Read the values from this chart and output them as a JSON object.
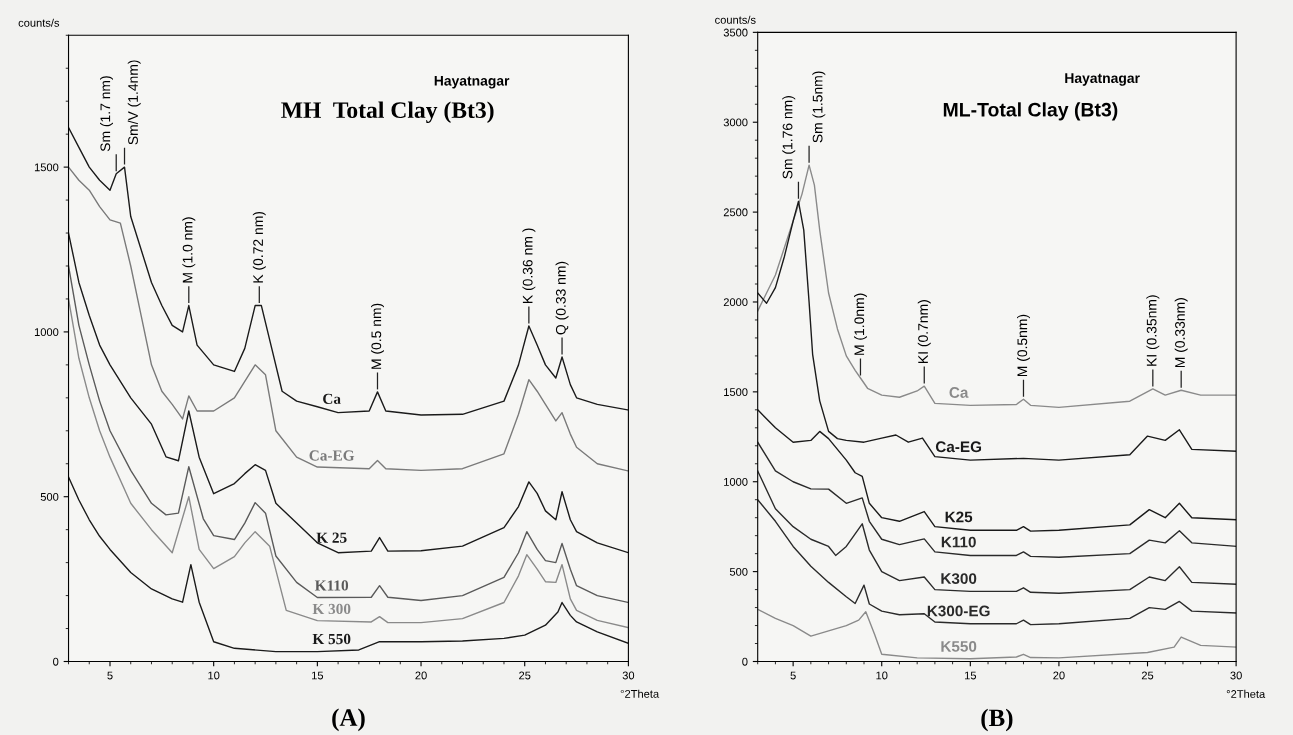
{
  "chart_data": [
    {
      "type": "line",
      "title": "MH  Total Clay (Bt3)",
      "subtitle": "Hayatnagar",
      "xlabel": "°2Theta",
      "ylabel": "counts/s",
      "xlim": [
        3,
        30
      ],
      "ylim": [
        0,
        1900
      ],
      "xticks": [
        5,
        10,
        15,
        20,
        25,
        30
      ],
      "yticks": [
        0,
        500,
        1000,
        1500
      ],
      "series": [
        {
          "name": "Ca",
          "color": "#1a1a1a",
          "x": [
            3,
            3.5,
            4,
            4.5,
            5,
            5.3,
            5.7,
            6,
            6.5,
            7,
            7.5,
            8,
            8.5,
            8.8,
            9.2,
            10,
            11,
            11.5,
            12,
            12.3,
            12.8,
            13.3,
            14,
            15,
            16,
            17.5,
            17.9,
            18.3,
            20,
            22,
            24,
            24.7,
            25.2,
            25.6,
            26,
            26.5,
            26.8,
            27.2,
            27.5,
            28.5,
            30
          ],
          "values": [
            1620,
            1560,
            1500,
            1460,
            1430,
            1480,
            1500,
            1350,
            1250,
            1150,
            1080,
            1020,
            1000,
            1080,
            960,
            900,
            880,
            950,
            1080,
            1080,
            950,
            820,
            790,
            773,
            755,
            760,
            818,
            760,
            748,
            750,
            790,
            900,
            1018,
            960,
            900,
            860,
            924,
            840,
            800,
            780,
            763
          ]
        },
        {
          "name": "Ca-EG",
          "color": "#7a7a7a",
          "x": [
            3,
            3.5,
            4,
            4.5,
            5,
            5.5,
            6,
            6.5,
            7,
            7.5,
            8,
            8.5,
            8.8,
            9.2,
            10,
            11,
            11.5,
            12,
            12.5,
            13,
            14,
            15,
            17.5,
            17.9,
            18.3,
            20,
            22,
            24,
            24.7,
            25.2,
            25.6,
            26,
            26.5,
            26.8,
            27.2,
            27.5,
            28.5,
            30
          ],
          "values": [
            1500,
            1460,
            1430,
            1380,
            1340,
            1330,
            1200,
            1050,
            900,
            820,
            780,
            736,
            806,
            760,
            760,
            800,
            850,
            900,
            870,
            700,
            620,
            590,
            585,
            610,
            585,
            580,
            585,
            630,
            750,
            855,
            820,
            780,
            730,
            755,
            690,
            650,
            600,
            578
          ]
        },
        {
          "name": "K 25",
          "color": "#1a1a1a",
          "x": [
            3,
            3.5,
            4,
            4.5,
            5,
            6,
            7,
            7.7,
            8.3,
            8.8,
            9.3,
            10,
            11,
            11.5,
            12,
            12.5,
            13,
            14,
            15,
            16,
            17.6,
            18,
            18.4,
            20,
            22,
            24,
            24.7,
            25.2,
            25.6,
            26,
            26.5,
            26.8,
            27.2,
            27.5,
            28.5,
            30
          ],
          "values": [
            1300,
            1150,
            1050,
            960,
            900,
            800,
            720,
            621,
            609,
            760,
            620,
            509,
            540,
            570,
            597,
            580,
            480,
            420,
            360,
            330,
            335,
            376,
            335,
            336,
            350,
            406,
            470,
            545,
            510,
            457,
            430,
            515,
            430,
            394,
            360,
            330
          ]
        },
        {
          "name": "K110",
          "color": "#5a5a5a",
          "x": [
            3,
            3.5,
            4,
            4.5,
            5,
            6,
            7,
            7.7,
            8.3,
            8.8,
            9.5,
            10,
            11,
            11.5,
            12,
            12.5,
            13,
            14,
            15,
            17.6,
            18,
            18.4,
            20,
            22,
            24,
            24.7,
            25.1,
            25.6,
            26,
            26.5,
            26.8,
            27.2,
            27.5,
            28.5,
            30
          ],
          "values": [
            1200,
            1020,
            900,
            790,
            700,
            580,
            480,
            445,
            450,
            591,
            433,
            382,
            370,
            420,
            482,
            450,
            320,
            240,
            194,
            195,
            230,
            195,
            185,
            200,
            255,
            330,
            394,
            340,
            306,
            300,
            358,
            280,
            230,
            200,
            179
          ]
        },
        {
          "name": "K 300",
          "color": "#8a8a8a",
          "x": [
            3,
            3.5,
            4,
            4.5,
            5,
            6,
            7,
            8,
            8.8,
            9.3,
            10,
            11,
            11.5,
            12,
            12.7,
            13.5,
            15,
            17.6,
            18,
            18.4,
            20,
            22,
            24,
            24.7,
            25.1,
            25.6,
            26,
            26.5,
            26.8,
            27.2,
            27.5,
            28.5,
            30
          ],
          "values": [
            1100,
            920,
            800,
            700,
            620,
            480,
            400,
            330,
            500,
            340,
            282,
            318,
            360,
            394,
            350,
            155,
            124,
            120,
            136,
            118,
            118,
            130,
            179,
            260,
            324,
            280,
            242,
            240,
            294,
            190,
            155,
            125,
            103
          ]
        },
        {
          "name": "K 550",
          "color": "#1a1a1a",
          "x": [
            3,
            3.5,
            4,
            4.5,
            5,
            6,
            7,
            8,
            8.5,
            8.9,
            9.3,
            10,
            11,
            13,
            15,
            17,
            18,
            20,
            22,
            24,
            25,
            26,
            26.6,
            26.8,
            27.2,
            27.5,
            28.5,
            30
          ],
          "values": [
            560,
            490,
            430,
            380,
            340,
            270,
            220,
            190,
            180,
            294,
            180,
            60,
            40,
            30,
            30,
            35,
            60,
            60,
            62,
            70,
            80,
            110,
            150,
            179,
            140,
            120,
            90,
            55
          ]
        }
      ],
      "annotations": [
        {
          "text": "Sm (1.7 nm)",
          "x": 5.3,
          "y": 1480
        },
        {
          "text": "Sm/V (1.4nm)",
          "x": 5.7,
          "y": 1500
        },
        {
          "text": "M (1.0 nm)",
          "x": 8.8,
          "y": 1080
        },
        {
          "text": "K (0.72 nm)",
          "x": 12.2,
          "y": 1080
        },
        {
          "text": "M (0.5 nm)",
          "x": 17.9,
          "y": 818
        },
        {
          "text": "K (0.36 nm )",
          "x": 25.2,
          "y": 1018
        },
        {
          "text": "Q (0.33 nm)",
          "x": 26.8,
          "y": 924
        },
        "(A)"
      ]
    },
    {
      "type": "line",
      "title": "ML-Total Clay (Bt3)",
      "subtitle": "Hayatnagar",
      "xlabel": "°2Theta",
      "ylabel": "counts/s",
      "xlim": [
        3,
        30
      ],
      "ylim": [
        0,
        3500
      ],
      "xticks": [
        5,
        10,
        15,
        20,
        25,
        30
      ],
      "yticks": [
        0,
        500,
        1000,
        1500,
        2000,
        2500,
        3000,
        3500
      ],
      "series": [
        {
          "name": "Ca",
          "color": "#8a8a8a",
          "x": [
            3,
            3.5,
            4,
            4.5,
            5,
            5.5,
            5.9,
            6.2,
            6.5,
            7,
            7.5,
            8,
            8.5,
            8.8,
            9.2,
            10,
            11,
            12,
            12.4,
            13,
            15,
            17.6,
            18,
            18.4,
            20,
            24,
            25.3,
            26,
            26.9,
            28,
            30
          ],
          "values": [
            1950,
            2050,
            2150,
            2300,
            2450,
            2600,
            2761,
            2650,
            2400,
            2050,
            1850,
            1700,
            1620,
            1577,
            1520,
            1482,
            1470,
            1505,
            1532,
            1436,
            1425,
            1430,
            1459,
            1425,
            1414,
            1448,
            1516,
            1482,
            1509,
            1482,
            1482
          ]
        },
        {
          "name": "Ca-EG",
          "color": "#1a1a1a",
          "x": [
            3,
            3.5,
            4,
            4.5,
            5,
            5.3,
            5.6,
            5.9,
            6.1,
            6.5,
            7,
            7.5,
            8,
            9,
            10,
            10.8,
            11.5,
            12.3,
            13,
            15,
            18,
            20,
            24,
            25,
            26,
            26.8,
            27.5,
            30
          ],
          "values": [
            2050,
            1993,
            2080,
            2250,
            2450,
            2560,
            2400,
            2000,
            1709,
            1450,
            1280,
            1240,
            1230,
            1220,
            1243,
            1260,
            1220,
            1243,
            1140,
            1120,
            1130,
            1120,
            1150,
            1254,
            1230,
            1289,
            1180,
            1170
          ]
        },
        {
          "name": "K25",
          "color": "#1a1a1a",
          "x": [
            3,
            4,
            5,
            6,
            6.5,
            7,
            8,
            8.5,
            8.9,
            9.3,
            10,
            11,
            12.4,
            13,
            15,
            17.6,
            18,
            18.4,
            20,
            24,
            25.1,
            26,
            26.8,
            27.5,
            30
          ],
          "values": [
            1400,
            1300,
            1220,
            1230,
            1280,
            1240,
            1120,
            1050,
            1030,
            880,
            800,
            780,
            834,
            750,
            730,
            730,
            750,
            725,
            730,
            760,
            845,
            800,
            880,
            800,
            789
          ]
        },
        {
          "name": "K110",
          "color": "#2a2a2a",
          "x": [
            3,
            4,
            5,
            6,
            7,
            8,
            8.9,
            9.3,
            10,
            11,
            12.4,
            13,
            15,
            17.6,
            18,
            18.4,
            20,
            24,
            25.1,
            26,
            26.8,
            27.5,
            30
          ],
          "values": [
            1220,
            1060,
            1000,
            960,
            959,
            880,
            910,
            780,
            680,
            650,
            682,
            610,
            590,
            590,
            610,
            585,
            580,
            600,
            675,
            660,
            727,
            660,
            641
          ]
        },
        {
          "name": "K300",
          "color": "#2a2a2a",
          "x": [
            3,
            4,
            5,
            6,
            7,
            7.4,
            8,
            8.9,
            9.3,
            10,
            11,
            12.4,
            13,
            15,
            17.6,
            18,
            18.4,
            20,
            24,
            25.1,
            26,
            26.8,
            27.5,
            30
          ],
          "values": [
            1060,
            850,
            750,
            680,
            640,
            590,
            640,
            766,
            620,
            500,
            450,
            470,
            400,
            390,
            390,
            410,
            385,
            380,
            400,
            470,
            450,
            527,
            440,
            430
          ]
        },
        {
          "name": "K300-EG",
          "color": "#2a2a2a",
          "x": [
            3,
            4,
            5,
            6,
            7,
            8,
            8.5,
            9,
            9.3,
            10,
            11,
            12.4,
            13,
            15,
            17.6,
            18,
            18.4,
            20,
            24,
            25.1,
            26,
            26.8,
            27.5,
            30
          ],
          "values": [
            900,
            780,
            640,
            530,
            440,
            360,
            323,
            425,
            320,
            280,
            260,
            266,
            220,
            210,
            210,
            230,
            205,
            210,
            240,
            300,
            290,
            334,
            280,
            270
          ]
        },
        {
          "name": "K550",
          "color": "#8a8a8a",
          "x": [
            3,
            4,
            5,
            6,
            7,
            8,
            8.7,
            9.1,
            9.6,
            10,
            12,
            15,
            17.6,
            18,
            18.4,
            20,
            25,
            26.5,
            26.9,
            28,
            30
          ],
          "values": [
            290,
            240,
            200,
            141,
            170,
            200,
            230,
            277,
            150,
            40,
            20,
            15,
            25,
            40,
            22,
            20,
            50,
            80,
            136,
            90,
            80
          ]
        }
      ],
      "annotations": [
        {
          "text": "Sm (1.76 nm)",
          "x": 5.3,
          "y": 2560
        },
        {
          "text": "Sm (1.5nm)",
          "x": 5.9,
          "y": 2761
        },
        {
          "text": "M (1.0nm)",
          "x": 8.8,
          "y": 1577
        },
        {
          "text": "KI (0.7nm)",
          "x": 12.4,
          "y": 1532
        },
        {
          "text": "M (0.5nm)",
          "x": 18,
          "y": 1459
        },
        {
          "text": "KI (0.35nm)",
          "x": 25.3,
          "y": 1516
        },
        {
          "text": "M (0.33nm)",
          "x": 26.9,
          "y": 1509
        },
        "(B)"
      ]
    }
  ]
}
